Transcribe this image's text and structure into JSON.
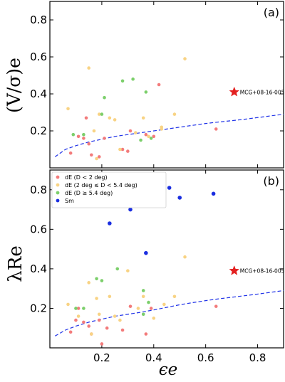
{
  "figure": {
    "shared_x_label": "ϵe",
    "legend_entries": [
      {
        "label": "dE (D < 2 deg)",
        "color": "#f37b7b"
      },
      {
        "label": "dE (2 deg ≤ D < 5.4 deg)",
        "color": "#f8d384"
      },
      {
        "label": "dE (D ≥ 5.4 deg)",
        "color": "#7ccf6b"
      },
      {
        "label": "Sm",
        "color": "#1a2ee0"
      }
    ]
  },
  "chart_data": [
    {
      "type": "scatter",
      "panel_label": "(a)",
      "ylabel": "(V/σ)e",
      "xlim": [
        0.0,
        0.9
      ],
      "ylim": [
        0.0,
        0.9
      ],
      "x_ticks": [
        0.2,
        0.4,
        0.6,
        0.8
      ],
      "y_ticks": [
        0.2,
        0.4,
        0.6,
        0.8
      ],
      "x_tick_labels": [
        "",
        "",
        "",
        ""
      ],
      "y_tick_labels": [
        "0.2",
        "0.4",
        "0.6",
        "0.8"
      ],
      "series": [
        {
          "color": "#f37b7b",
          "points": [
            {
              "x": 0.14,
              "y": 0.27
            },
            {
              "x": 0.11,
              "y": 0.17
            },
            {
              "x": 0.13,
              "y": 0.16
            },
            {
              "x": 0.15,
              "y": 0.13
            },
            {
              "x": 0.16,
              "y": 0.07
            },
            {
              "x": 0.19,
              "y": 0.06
            },
            {
              "x": 0.21,
              "y": 0.16
            },
            {
              "x": 0.28,
              "y": 0.1
            },
            {
              "x": 0.3,
              "y": 0.09
            },
            {
              "x": 0.31,
              "y": 0.2
            },
            {
              "x": 0.37,
              "y": 0.18
            },
            {
              "x": 0.4,
              "y": 0.17
            },
            {
              "x": 0.42,
              "y": 0.45
            },
            {
              "x": 0.64,
              "y": 0.21
            },
            {
              "x": 0.08,
              "y": 0.08
            }
          ]
        },
        {
          "color": "#f8d384",
          "points": [
            {
              "x": 0.07,
              "y": 0.32
            },
            {
              "x": 0.15,
              "y": 0.54
            },
            {
              "x": 0.17,
              "y": 0.2
            },
            {
              "x": 0.18,
              "y": 0.05
            },
            {
              "x": 0.19,
              "y": 0.29
            },
            {
              "x": 0.23,
              "y": 0.27
            },
            {
              "x": 0.25,
              "y": 0.26
            },
            {
              "x": 0.27,
              "y": 0.1
            },
            {
              "x": 0.33,
              "y": 0.19
            },
            {
              "x": 0.36,
              "y": 0.27
            },
            {
              "x": 0.38,
              "y": 0.17
            },
            {
              "x": 0.43,
              "y": 0.22
            },
            {
              "x": 0.48,
              "y": 0.29
            },
            {
              "x": 0.52,
              "y": 0.59
            },
            {
              "x": 0.43,
              "y": 0.21
            }
          ]
        },
        {
          "color": "#7ccf6b",
          "points": [
            {
              "x": 0.09,
              "y": 0.18
            },
            {
              "x": 0.13,
              "y": 0.18
            },
            {
              "x": 0.2,
              "y": 0.29
            },
            {
              "x": 0.21,
              "y": 0.38
            },
            {
              "x": 0.28,
              "y": 0.47
            },
            {
              "x": 0.32,
              "y": 0.48
            },
            {
              "x": 0.35,
              "y": 0.15
            },
            {
              "x": 0.37,
              "y": 0.41
            },
            {
              "x": 0.39,
              "y": 0.16
            }
          ]
        }
      ],
      "curve": {
        "color": "#1f32e8",
        "style": "dashed",
        "x": [
          0.02,
          0.06,
          0.1,
          0.15,
          0.2,
          0.25,
          0.3,
          0.35,
          0.4,
          0.45,
          0.5,
          0.55,
          0.6,
          0.65,
          0.7,
          0.75,
          0.8,
          0.85,
          0.9
        ],
        "y": [
          0.06,
          0.1,
          0.12,
          0.14,
          0.155,
          0.17,
          0.18,
          0.19,
          0.2,
          0.21,
          0.22,
          0.23,
          0.24,
          0.248,
          0.255,
          0.263,
          0.272,
          0.281,
          0.29
        ]
      },
      "highlight": {
        "x": 0.71,
        "y": 0.41,
        "label": "MCG+08-16-005",
        "color": "#e31f1f",
        "marker": "star"
      }
    },
    {
      "type": "scatter",
      "panel_label": "(b)",
      "ylabel": "λRe",
      "xlim": [
        0.0,
        0.9
      ],
      "ylim": [
        0.0,
        0.9
      ],
      "x_ticks": [
        0.2,
        0.4,
        0.6,
        0.8
      ],
      "y_ticks": [
        0.2,
        0.4,
        0.6,
        0.8
      ],
      "x_tick_labels": [
        "0.2",
        "0.4",
        "0.6",
        "0.8"
      ],
      "y_tick_labels": [
        "0.2",
        "0.4",
        "0.6",
        "0.8"
      ],
      "series": [
        {
          "color": "#f37b7b",
          "points": [
            {
              "x": 0.08,
              "y": 0.08
            },
            {
              "x": 0.1,
              "y": 0.14
            },
            {
              "x": 0.11,
              "y": 0.2
            },
            {
              "x": 0.13,
              "y": 0.13
            },
            {
              "x": 0.15,
              "y": 0.11
            },
            {
              "x": 0.16,
              "y": 0.07
            },
            {
              "x": 0.19,
              "y": 0.14
            },
            {
              "x": 0.2,
              "y": 0.02
            },
            {
              "x": 0.22,
              "y": 0.1
            },
            {
              "x": 0.28,
              "y": 0.09
            },
            {
              "x": 0.31,
              "y": 0.21
            },
            {
              "x": 0.37,
              "y": 0.07
            },
            {
              "x": 0.39,
              "y": 0.2
            },
            {
              "x": 0.64,
              "y": 0.21
            }
          ]
        },
        {
          "color": "#f8d384",
          "points": [
            {
              "x": 0.07,
              "y": 0.22
            },
            {
              "x": 0.11,
              "y": 0.16
            },
            {
              "x": 0.15,
              "y": 0.33
            },
            {
              "x": 0.16,
              "y": 0.07
            },
            {
              "x": 0.18,
              "y": 0.25
            },
            {
              "x": 0.19,
              "y": 0.17
            },
            {
              "x": 0.23,
              "y": 0.26
            },
            {
              "x": 0.25,
              "y": 0.16
            },
            {
              "x": 0.3,
              "y": 0.39
            },
            {
              "x": 0.34,
              "y": 0.2
            },
            {
              "x": 0.36,
              "y": 0.26
            },
            {
              "x": 0.4,
              "y": 0.15
            },
            {
              "x": 0.44,
              "y": 0.22
            },
            {
              "x": 0.48,
              "y": 0.26
            },
            {
              "x": 0.52,
              "y": 0.46
            },
            {
              "x": 0.27,
              "y": 0.14
            }
          ]
        },
        {
          "color": "#7ccf6b",
          "points": [
            {
              "x": 0.1,
              "y": 0.2
            },
            {
              "x": 0.13,
              "y": 0.2
            },
            {
              "x": 0.18,
              "y": 0.35
            },
            {
              "x": 0.2,
              "y": 0.34
            },
            {
              "x": 0.26,
              "y": 0.4
            },
            {
              "x": 0.36,
              "y": 0.29
            },
            {
              "x": 0.38,
              "y": 0.23
            },
            {
              "x": 0.36,
              "y": 0.17
            }
          ]
        },
        {
          "color": "#1a2ee0",
          "points": [
            {
              "x": 0.23,
              "y": 0.63
            },
            {
              "x": 0.31,
              "y": 0.7
            },
            {
              "x": 0.36,
              "y": 0.76
            },
            {
              "x": 0.37,
              "y": 0.48
            },
            {
              "x": 0.46,
              "y": 0.81
            },
            {
              "x": 0.5,
              "y": 0.76
            },
            {
              "x": 0.63,
              "y": 0.78
            }
          ]
        }
      ],
      "curve": {
        "color": "#1f32e8",
        "style": "dashed",
        "x": [
          0.02,
          0.06,
          0.1,
          0.15,
          0.2,
          0.25,
          0.3,
          0.35,
          0.4,
          0.45,
          0.5,
          0.55,
          0.6,
          0.65,
          0.7,
          0.75,
          0.8,
          0.85,
          0.9
        ],
        "y": [
          0.06,
          0.09,
          0.11,
          0.13,
          0.145,
          0.16,
          0.17,
          0.18,
          0.192,
          0.205,
          0.218,
          0.229,
          0.239,
          0.248,
          0.256,
          0.264,
          0.272,
          0.281,
          0.29
        ]
      },
      "highlight": {
        "x": 0.71,
        "y": 0.39,
        "label": "MCG+08-16-005",
        "color": "#e31f1f",
        "marker": "star"
      },
      "legend": "top-left"
    }
  ]
}
